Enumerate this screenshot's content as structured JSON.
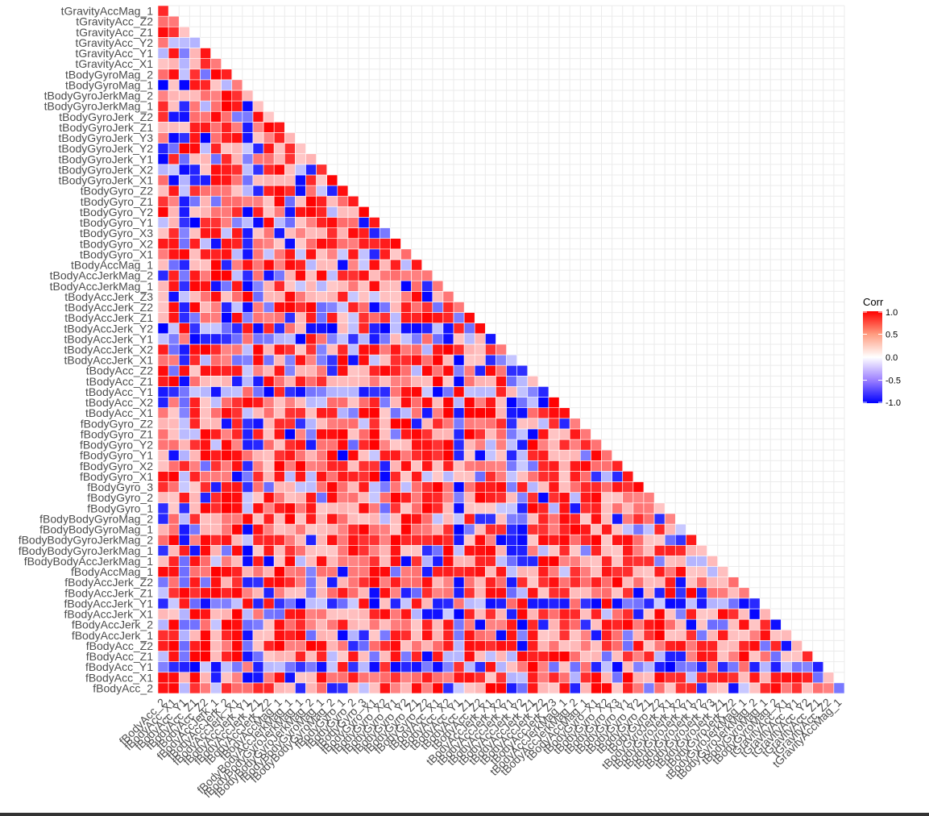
{
  "chart_data": {
    "type": "heatmap",
    "subtype": "correlation-lower-triangle",
    "variables": [
      "fBodyAcc_2",
      "fBodyAcc_X1",
      "fBodyAcc_Y1",
      "fBodyAcc_Z1",
      "fBodyAcc_Z2",
      "fBodyAccJerk_1",
      "fBodyAccJerk_2",
      "fBodyAccJerk_X1",
      "fBodyAccJerk_Y1",
      "fBodyAccJerk_Z1",
      "fBodyAccJerk_Z2",
      "fBodyAccMag_1",
      "fBodyBodyAccJerkMag_1",
      "fBodyBodyGyroJerkMag_1",
      "fBodyBodyGyroJerkMag_2",
      "fBodyBodyGyroMag_1",
      "fBodyBodyGyroMag_2",
      "fBodyGyro_1",
      "fBodyGyro_2",
      "fBodyGyro_3",
      "fBodyGyro_X1",
      "fBodyGyro_X2",
      "fBodyGyro_Y1",
      "fBodyGyro_Y2",
      "fBodyGyro_Z1",
      "fBodyGyro_Z2",
      "tBodyAcc_X1",
      "tBodyAcc_X2",
      "tBodyAcc_Y1",
      "tBodyAcc_Z1",
      "tBodyAcc_Z2",
      "tBodyAccJerk_X1",
      "tBodyAccJerk_X2",
      "tBodyAccJerk_Y1",
      "tBodyAccJerk_Y2",
      "tBodyAccJerk_Z1",
      "tBodyAccJerk_Z2",
      "tBodyAccJerk_Z3",
      "tBodyAccJerkMag_1",
      "tBodyAccJerkMag_2",
      "tBodyAccMag_1",
      "tBodyGyro_X1",
      "tBodyGyro_X2",
      "tBodyGyro_X3",
      "tBodyGyro_Y1",
      "tBodyGyro_Y2",
      "tBodyGyro_Z1",
      "tBodyGyro_Z2",
      "tBodyGyroJerk_X1",
      "tBodyGyroJerk_X2",
      "tBodyGyroJerk_Y1",
      "tBodyGyroJerk_Y2",
      "tBodyGyroJerk_Y3",
      "tBodyGyroJerk_Z1",
      "tBodyGyroJerk_Z2",
      "tBodyGyroJerkMag_1",
      "tBodyGyroJerkMag_2",
      "tBodyGyroMag_1",
      "tBodyGyroMag_2",
      "tGravityAcc_X1",
      "tGravityAcc_Y1",
      "tGravityAcc_Y2",
      "tGravityAcc_Z1",
      "tGravityAcc_Z2",
      "tGravityAccMag_1"
    ],
    "legend": {
      "title": "Corr",
      "ticks": [
        "1.0",
        "0.5",
        "0.0",
        "-0.5",
        "-1.0"
      ],
      "tick_values": [
        1.0,
        0.5,
        0.0,
        -0.5,
        -1.0
      ],
      "placement": "right"
    },
    "scale": {
      "min": -1.0,
      "max": 1.0,
      "low_color": "#0000ff",
      "mid_color": "#ffffff",
      "high_color": "#ff0000"
    },
    "grid": true,
    "colors": {
      "background": "#ffffff",
      "grid": "#ebebeb",
      "cell_border": "#d6d6d6",
      "tick_text": "#4d4d4d"
    }
  }
}
